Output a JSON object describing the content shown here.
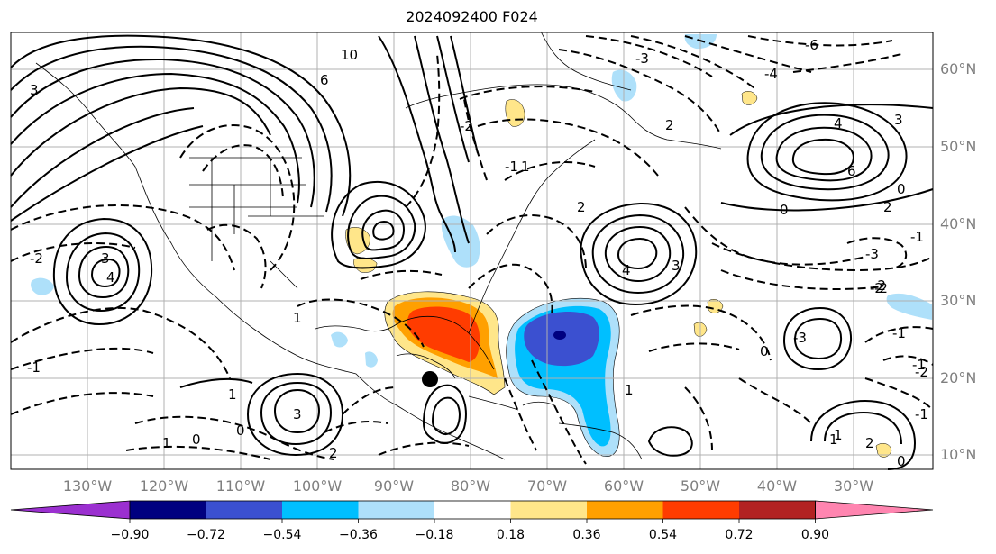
{
  "title": "2024092400 F024",
  "map": {
    "lat_labels": [
      "60°N",
      "50°N",
      "40°N",
      "30°N",
      "20°N",
      "10°N"
    ],
    "lon_labels": [
      "130°W",
      "120°W",
      "110°W",
      "100°W",
      "90°W",
      "80°W",
      "70°W",
      "60°W",
      "50°W",
      "40°W",
      "30°W"
    ],
    "storm_marker": "black-dot",
    "contour_labels": [
      "10",
      "6",
      "3",
      "3",
      "4",
      "2",
      "1",
      "1",
      "0",
      "-1",
      "-2",
      "-3",
      "-4",
      "-6",
      "6",
      "4",
      "4",
      "3",
      "2",
      "0",
      "-1",
      "-2",
      "-3",
      "3",
      "2",
      "1",
      "0",
      "-1",
      "-2",
      "1",
      "0",
      "-1",
      "-2",
      "1",
      "-3",
      "3",
      "2",
      "1",
      "0",
      "-1",
      "-2",
      "-2",
      "2",
      "1",
      "0",
      "-1"
    ]
  },
  "colorbar": {
    "ticks": [
      "−0.90",
      "−0.72",
      "−0.54",
      "−0.36",
      "−0.18",
      "0.18",
      "0.36",
      "0.54",
      "0.72",
      "0.90"
    ],
    "colors": [
      "#9b30d0",
      "#000080",
      "#3b50d0",
      "#00bfff",
      "#aee0fa",
      "#ffffff",
      "#ffe68a",
      "#ffa000",
      "#ff3c00",
      "#b22222",
      "#ff85b0"
    ]
  }
}
